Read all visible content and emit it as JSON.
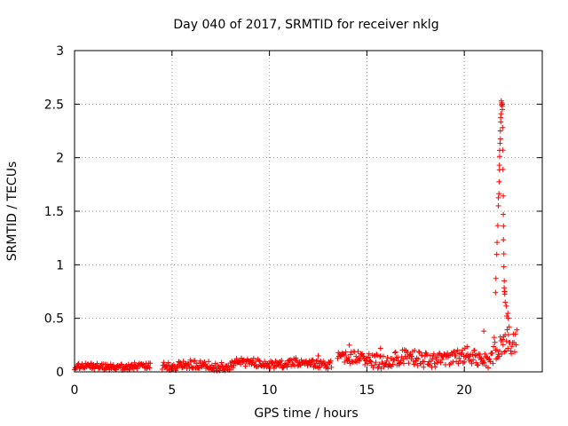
{
  "chart_data": {
    "type": "scatter",
    "title": "Day 040 of 2017, SRMTID for receiver nklg",
    "xlabel": "GPS time / hours",
    "ylabel": "SRMTID / TECUs",
    "xlim": [
      0,
      24
    ],
    "ylim": [
      0,
      3
    ],
    "grid": true,
    "marker": "+",
    "color": "#ff0000",
    "x_ticks": [
      0,
      5,
      10,
      15,
      20
    ],
    "x_tick_labels": [
      "0",
      "5",
      "10",
      "15",
      "20"
    ],
    "y_ticks": [
      0,
      0.5,
      1,
      1.5,
      2,
      2.5,
      3
    ],
    "y_tick_labels": [
      "0",
      "0.5",
      "1",
      "1.5",
      "2",
      "2.5",
      "3"
    ],
    "segments": [
      {
        "x_start": 0.0,
        "x_end": 3.9,
        "baseline": 0.05,
        "spread": 0.03
      },
      {
        "x_start": 4.5,
        "x_end": 8.0,
        "baseline": 0.06,
        "spread": 0.04
      },
      {
        "x_start": 8.0,
        "x_end": 13.2,
        "baseline": 0.08,
        "spread": 0.04
      },
      {
        "x_start": 13.5,
        "x_end": 20.0,
        "baseline": 0.12,
        "spread": 0.07
      },
      {
        "x_start": 20.0,
        "x_end": 21.5,
        "baseline": 0.14,
        "spread": 0.08
      },
      {
        "x_start": 21.5,
        "x_end": 22.7,
        "baseline": 0.25,
        "spread": 0.12
      }
    ],
    "peaks": [
      {
        "x": 21.0,
        "y": 0.38
      },
      {
        "x": 21.6,
        "y": 0.74
      },
      {
        "x": 21.75,
        "y": 1.55
      },
      {
        "x": 21.8,
        "y": 1.93
      },
      {
        "x": 21.85,
        "y": 2.25
      },
      {
        "x": 21.9,
        "y": 2.53
      },
      {
        "x": 21.95,
        "y": 2.45
      },
      {
        "x": 22.0,
        "y": 1.47
      },
      {
        "x": 22.05,
        "y": 0.85
      },
      {
        "x": 22.1,
        "y": 0.65
      },
      {
        "x": 22.3,
        "y": 0.42
      },
      {
        "x": 14.1,
        "y": 0.25
      },
      {
        "x": 15.7,
        "y": 0.22
      },
      {
        "x": 12.5,
        "y": 0.15
      }
    ]
  }
}
